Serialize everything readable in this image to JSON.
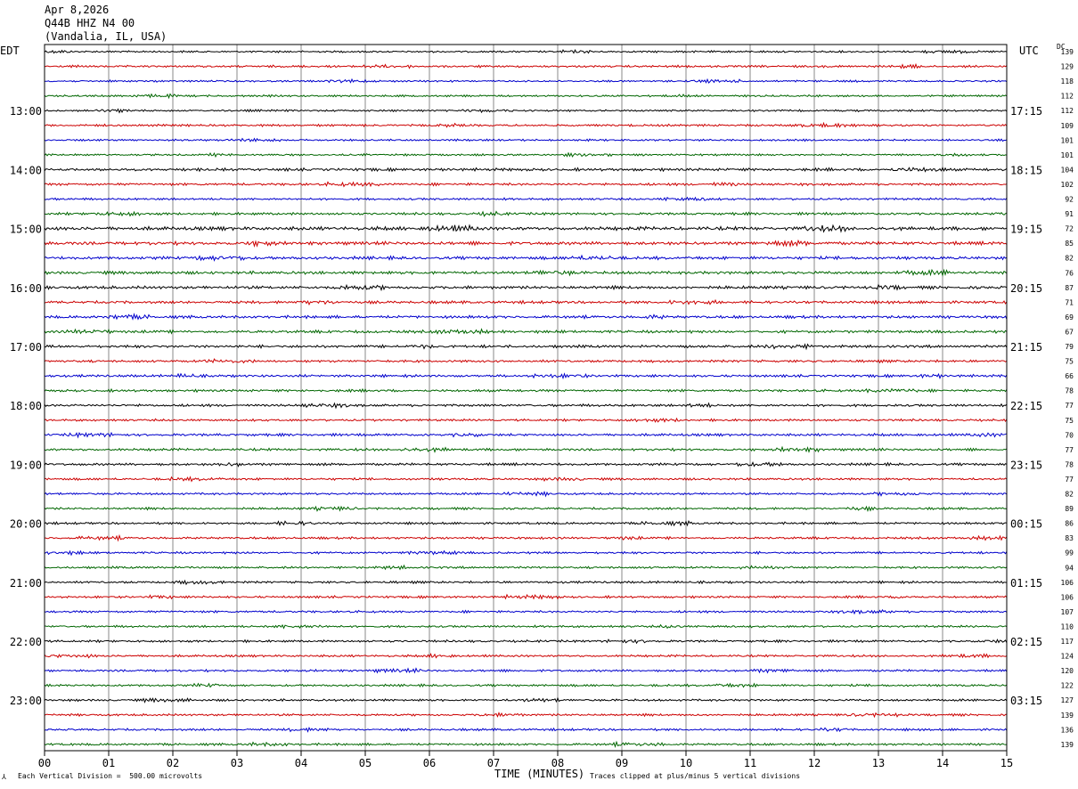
{
  "header": {
    "date": "Apr 8,2026",
    "station": "Q44B HHZ N4 00",
    "location": "(Vandalia, IL, USA)"
  },
  "labels": {
    "left_timezone": "EDT",
    "right_timezone": "UTC",
    "dc_header": "DC",
    "x_axis_title": "TIME (MINUTES)",
    "scale_note": "Each Vertical Division =  500.00 microvolts",
    "clip_note": "Traces clipped at plus/minus 5 vertical divisions",
    "corner_mark": "⅄"
  },
  "colors": {
    "trace_cycle": [
      "#000000",
      "#cc0000",
      "#0000cc",
      "#006600"
    ],
    "grid": "#888888"
  },
  "chart_data": {
    "type": "helicorder",
    "x": {
      "min": 0,
      "max": 15,
      "unit": "minutes",
      "ticks": [
        "00",
        "01",
        "02",
        "03",
        "04",
        "05",
        "06",
        "07",
        "08",
        "09",
        "10",
        "11",
        "12",
        "13",
        "14",
        "15"
      ]
    },
    "rows_per_hour": 4,
    "minutes_per_row": 15,
    "left_hour_labels": [
      {
        "row": 4,
        "label": "13:00"
      },
      {
        "row": 8,
        "label": "14:00"
      },
      {
        "row": 12,
        "label": "15:00"
      },
      {
        "row": 16,
        "label": "16:00"
      },
      {
        "row": 20,
        "label": "17:00"
      },
      {
        "row": 24,
        "label": "18:00"
      },
      {
        "row": 28,
        "label": "19:00"
      },
      {
        "row": 32,
        "label": "20:00"
      },
      {
        "row": 36,
        "label": "21:00"
      },
      {
        "row": 40,
        "label": "22:00"
      },
      {
        "row": 44,
        "label": "23:00"
      }
    ],
    "right_hour_labels": [
      {
        "row": 4,
        "label": "17:15"
      },
      {
        "row": 8,
        "label": "18:15"
      },
      {
        "row": 12,
        "label": "19:15"
      },
      {
        "row": 16,
        "label": "20:15"
      },
      {
        "row": 20,
        "label": "21:15"
      },
      {
        "row": 24,
        "label": "22:15"
      },
      {
        "row": 28,
        "label": "23:15"
      },
      {
        "row": 32,
        "label": "00:15"
      },
      {
        "row": 36,
        "label": "01:15"
      },
      {
        "row": 40,
        "label": "02:15"
      },
      {
        "row": 44,
        "label": "03:15"
      }
    ],
    "dc_offsets": [
      139,
      129,
      118,
      112,
      112,
      109,
      101,
      101,
      104,
      102,
      92,
      91,
      72,
      85,
      82,
      76,
      87,
      71,
      69,
      67,
      79,
      75,
      66,
      78,
      77,
      75,
      70,
      77,
      78,
      77,
      82,
      89,
      86,
      83,
      99,
      94,
      106,
      106,
      107,
      110,
      117,
      124,
      120,
      122,
      127,
      139,
      136,
      139
    ],
    "row_activity": [
      0.7,
      0.8,
      0.7,
      0.7,
      0.7,
      0.8,
      0.7,
      0.7,
      1.0,
      0.9,
      0.8,
      0.9,
      1.3,
      1.2,
      1.1,
      1.1,
      1.1,
      1.0,
      1.0,
      1.0,
      1.0,
      0.9,
      0.9,
      0.9,
      0.9,
      0.8,
      0.9,
      0.9,
      0.9,
      0.8,
      0.8,
      0.8,
      0.8,
      0.8,
      0.8,
      0.8,
      0.8,
      0.8,
      0.8,
      0.8,
      0.8,
      0.8,
      0.8,
      0.8,
      0.8,
      0.8,
      0.8,
      0.8
    ]
  }
}
